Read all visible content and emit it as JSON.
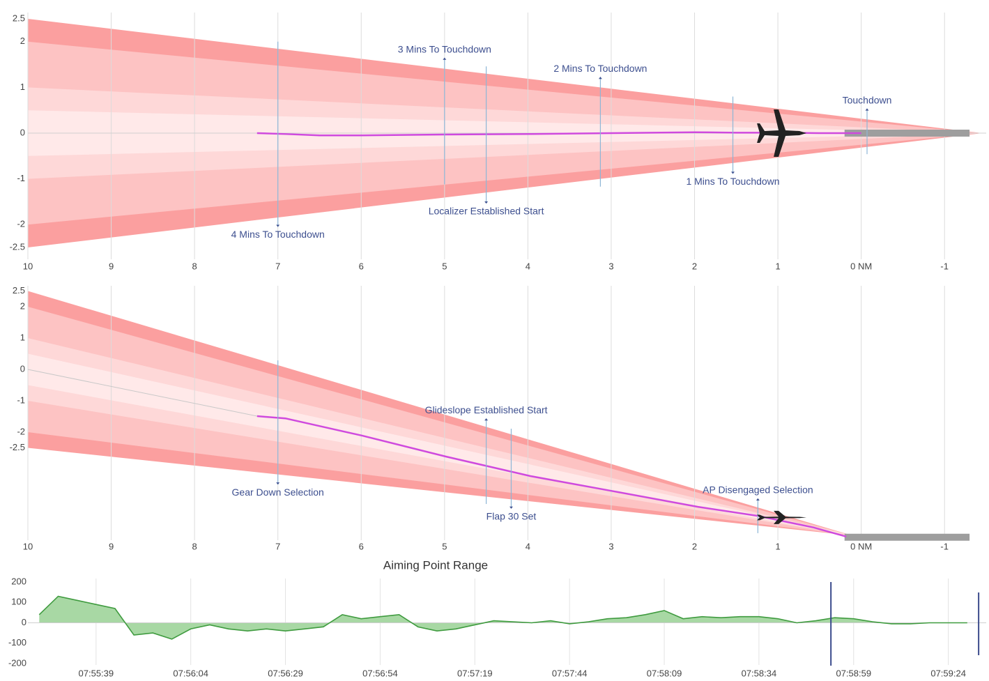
{
  "chart_data": [
    {
      "type": "range",
      "xlim": [
        10,
        -1.5
      ],
      "xticks": [
        10,
        9,
        8,
        7,
        6,
        5,
        4,
        3,
        2,
        1,
        {
          "value": 0,
          "label": "0 NM"
        },
        -1
      ],
      "ylim": [
        -2.5,
        2.5
      ],
      "yticks": [
        2.5,
        2,
        1,
        0,
        -1,
        -2,
        -2.5
      ],
      "grid": true,
      "zeroline": true,
      "cone": {
        "start": [
          10,
          0
        ],
        "apex": [
          -1.45,
          0
        ],
        "bands": [
          2.5,
          2,
          1,
          0.5
        ],
        "colors": [
          "#fb9f9f",
          "#fdc3c3",
          "#fed8d8",
          "#ffe9e9"
        ]
      },
      "path": {
        "color": "#cf4ade",
        "x": [
          7.25,
          6.9,
          6.5,
          6,
          5,
          4,
          3,
          2,
          1.5,
          1,
          0.5,
          0
        ],
        "y": [
          0,
          -0.02,
          -0.05,
          -0.05,
          -0.03,
          -0.02,
          0,
          0.02,
          0.01,
          0.01,
          0,
          0
        ]
      },
      "runway": {
        "x": [
          0.2,
          -1.3
        ],
        "y": 0,
        "color": "#9e9e9e"
      },
      "aircraft": {
        "x": 0.95,
        "y": 0
      },
      "annotations": [
        {
          "text": "4 Mins To Touchdown",
          "x": 7.0,
          "y": [
            2.0,
            -2.05
          ],
          "position": "below"
        },
        {
          "text": "3 Mins To Touchdown",
          "x": 5.0,
          "y": [
            1.65,
            -1.12
          ],
          "position": "above"
        },
        {
          "text": "Localizer Established Start",
          "x": 4.5,
          "y": [
            1.46,
            -1.54
          ],
          "position": "below"
        },
        {
          "text": "2 Mins To Touchdown",
          "x": 3.13,
          "y": [
            1.23,
            -1.17
          ],
          "position": "above"
        },
        {
          "text": "1 Mins To Touchdown",
          "x": 1.54,
          "y": [
            0.8,
            -0.89
          ],
          "position": "below"
        },
        {
          "text": "Touchdown",
          "x": -0.07,
          "y": [
            0.54,
            -0.46
          ],
          "position": "above"
        }
      ]
    },
    {
      "type": "range",
      "xlabel": "Aiming Point Range",
      "xlim": [
        10,
        -1.5
      ],
      "xticks": [
        10,
        9,
        8,
        7,
        6,
        5,
        4,
        3,
        2,
        1,
        {
          "value": 0,
          "label": "0 NM"
        },
        -1
      ],
      "ylim": [
        -5.4,
        2.5
      ],
      "yticks": [
        2.5,
        2,
        1,
        0,
        -1,
        -2,
        -2.5
      ],
      "grid": true,
      "zeroline": false,
      "cone": {
        "start": [
          10,
          0
        ],
        "apex": [
          0.1,
          -5.3
        ],
        "bands": [
          2.5,
          2,
          1,
          0.5
        ],
        "colors": [
          "#fb9f9f",
          "#fdc3c3",
          "#fed8d8",
          "#ffe9e9"
        ]
      },
      "reference_line": {
        "x": [
          10,
          7.25
        ],
        "y": [
          0,
          -1.49
        ]
      },
      "path": {
        "color": "#cf4ade",
        "x": [
          7.25,
          6.91,
          5.99,
          4.98,
          3.97,
          2.96,
          1.96,
          1.24,
          0.57,
          0.18
        ],
        "y": [
          -1.49,
          -1.56,
          -2.11,
          -2.78,
          -3.4,
          -3.89,
          -4.38,
          -4.67,
          -5.04,
          -5.33
        ]
      },
      "runway": {
        "x": [
          0.2,
          -1.3
        ],
        "y": -5.35,
        "color": "#9e9e9e"
      },
      "aircraft": {
        "x": 0.95,
        "y": -4.72
      },
      "annotations": [
        {
          "text": "Gear Down Selection",
          "x": 7.0,
          "y": [
            0.29,
            -3.67
          ],
          "position": "below"
        },
        {
          "text": "Glideslope Established Start",
          "x": 4.5,
          "y": [
            -1.56,
            -4.29
          ],
          "position": "above"
        },
        {
          "text": "Flap 30 Set",
          "x": 4.2,
          "y": [
            -1.89,
            -4.44
          ],
          "position": "below"
        },
        {
          "text": "AP Disengaged Selection",
          "x": 1.24,
          "y": [
            -4.11,
            -5.22
          ],
          "position": "above"
        }
      ]
    },
    {
      "type": "area",
      "color": "#3f9b3f",
      "fill": "#a8d8a4",
      "xlim": [
        "07:55:21",
        "07:59:34"
      ],
      "xticks": [
        "07:55:39",
        "07:56:04",
        "07:56:29",
        "07:56:54",
        "07:57:19",
        "07:57:44",
        "07:58:09",
        "07:58:34",
        "07:58:59",
        "07:59:24"
      ],
      "ylim": [
        -200,
        200
      ],
      "yticks": [
        200,
        100,
        0,
        -100,
        -200
      ],
      "grid": true,
      "cursor_lines": [
        "07:58:53",
        "07:59:32"
      ],
      "x": [
        "07:55:24",
        "07:55:29",
        "07:55:34",
        "07:55:39",
        "07:55:44",
        "07:55:49",
        "07:55:54",
        "07:55:59",
        "07:56:04",
        "07:56:09",
        "07:56:14",
        "07:56:19",
        "07:56:24",
        "07:56:29",
        "07:56:34",
        "07:56:39",
        "07:56:44",
        "07:56:49",
        "07:56:54",
        "07:56:59",
        "07:57:04",
        "07:57:09",
        "07:57:14",
        "07:57:19",
        "07:57:24",
        "07:57:29",
        "07:57:34",
        "07:57:39",
        "07:57:44",
        "07:57:49",
        "07:57:54",
        "07:57:59",
        "07:58:04",
        "07:58:09",
        "07:58:14",
        "07:58:19",
        "07:58:24",
        "07:58:29",
        "07:58:34",
        "07:58:39",
        "07:58:44",
        "07:58:49",
        "07:58:54",
        "07:58:59",
        "07:59:04",
        "07:59:09",
        "07:59:14",
        "07:59:19",
        "07:59:24",
        "07:59:29"
      ],
      "values": [
        40,
        130,
        110,
        90,
        70,
        -60,
        -50,
        -80,
        -30,
        -10,
        -30,
        -40,
        -30,
        -40,
        -30,
        -20,
        40,
        20,
        30,
        40,
        -20,
        -40,
        -30,
        -10,
        10,
        5,
        0,
        10,
        -5,
        5,
        20,
        25,
        40,
        60,
        20,
        30,
        25,
        30,
        30,
        20,
        0,
        10,
        25,
        20,
        5,
        -5,
        -5,
        0,
        0,
        0
      ]
    }
  ]
}
